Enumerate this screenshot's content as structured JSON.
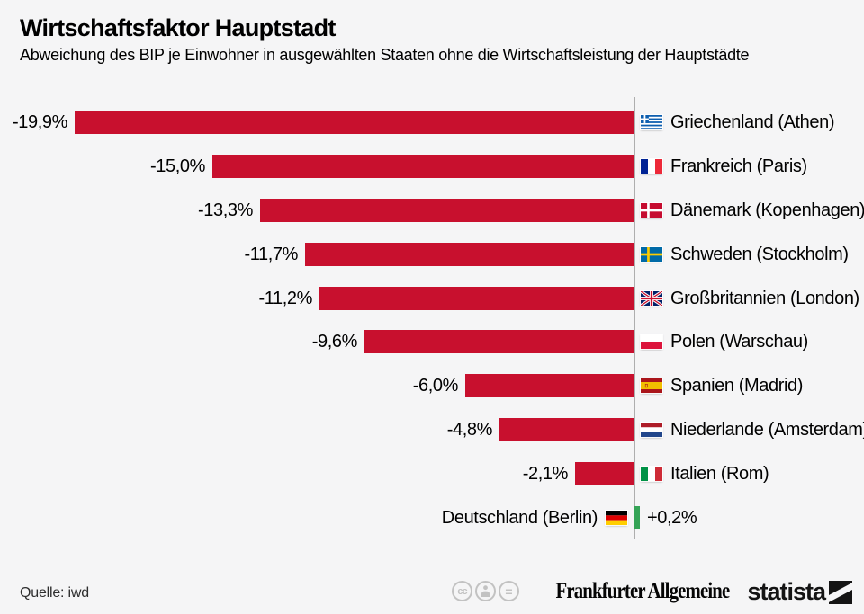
{
  "header": {
    "title": "Wirtschaftsfaktor Hauptstadt",
    "subtitle": "Abweichung des BIP je Einwohner in ausgewählten Staaten ohne die Wirtschaftsleistung der Hauptstädte"
  },
  "chart_data": {
    "type": "bar",
    "orientation": "horizontal",
    "title": "Wirtschaftsfaktor Hauptstadt",
    "subtitle": "Abweichung des BIP je Einwohner in ausgewählten Staaten ohne die Wirtschaftsleistung der Hauptstädte",
    "unit": "percent",
    "baseline": 0,
    "xlim": [
      -20.5,
      1.5
    ],
    "gridlines": false,
    "negative_color": "#c8102e",
    "positive_color": "#35a457",
    "rows": [
      {
        "country": "Griechenland (Athen)",
        "flag": "greece",
        "value": -19.9,
        "value_label": "-19,9%"
      },
      {
        "country": "Frankreich (Paris)",
        "flag": "france",
        "value": -15.0,
        "value_label": "-15,0%"
      },
      {
        "country": "Dänemark (Kopenhagen)",
        "flag": "denmark",
        "value": -13.3,
        "value_label": "-13,3%"
      },
      {
        "country": "Schweden (Stockholm)",
        "flag": "sweden",
        "value": -11.7,
        "value_label": "-11,7%"
      },
      {
        "country": "Großbritannien (London)",
        "flag": "uk",
        "value": -11.2,
        "value_label": "-11,2%"
      },
      {
        "country": "Polen (Warschau)",
        "flag": "poland",
        "value": -9.6,
        "value_label": "-9,6%"
      },
      {
        "country": "Spanien (Madrid)",
        "flag": "spain",
        "value": -6.0,
        "value_label": "-6,0%"
      },
      {
        "country": "Niederlande (Amsterdam)",
        "flag": "netherlands",
        "value": -4.8,
        "value_label": "-4,8%"
      },
      {
        "country": "Italien (Rom)",
        "flag": "italy",
        "value": -2.1,
        "value_label": "-2,1%"
      },
      {
        "country": "Deutschland (Berlin)",
        "flag": "germany",
        "value": 0.2,
        "value_label": "+0,2%"
      }
    ]
  },
  "footer": {
    "source": "Quelle: iwd",
    "license_icons": [
      "cc-icon",
      "attribution-icon",
      "equal-icon"
    ],
    "cc_text": "cc",
    "equal_text": "=",
    "faz_logo_text": "Frankfurter Allgemeine",
    "statista_logo_text": "statista"
  },
  "colors": {
    "background": "#f5f5f6",
    "bar_negative": "#c8102e",
    "bar_positive": "#35a457",
    "axis_line": "#aeaeae"
  }
}
